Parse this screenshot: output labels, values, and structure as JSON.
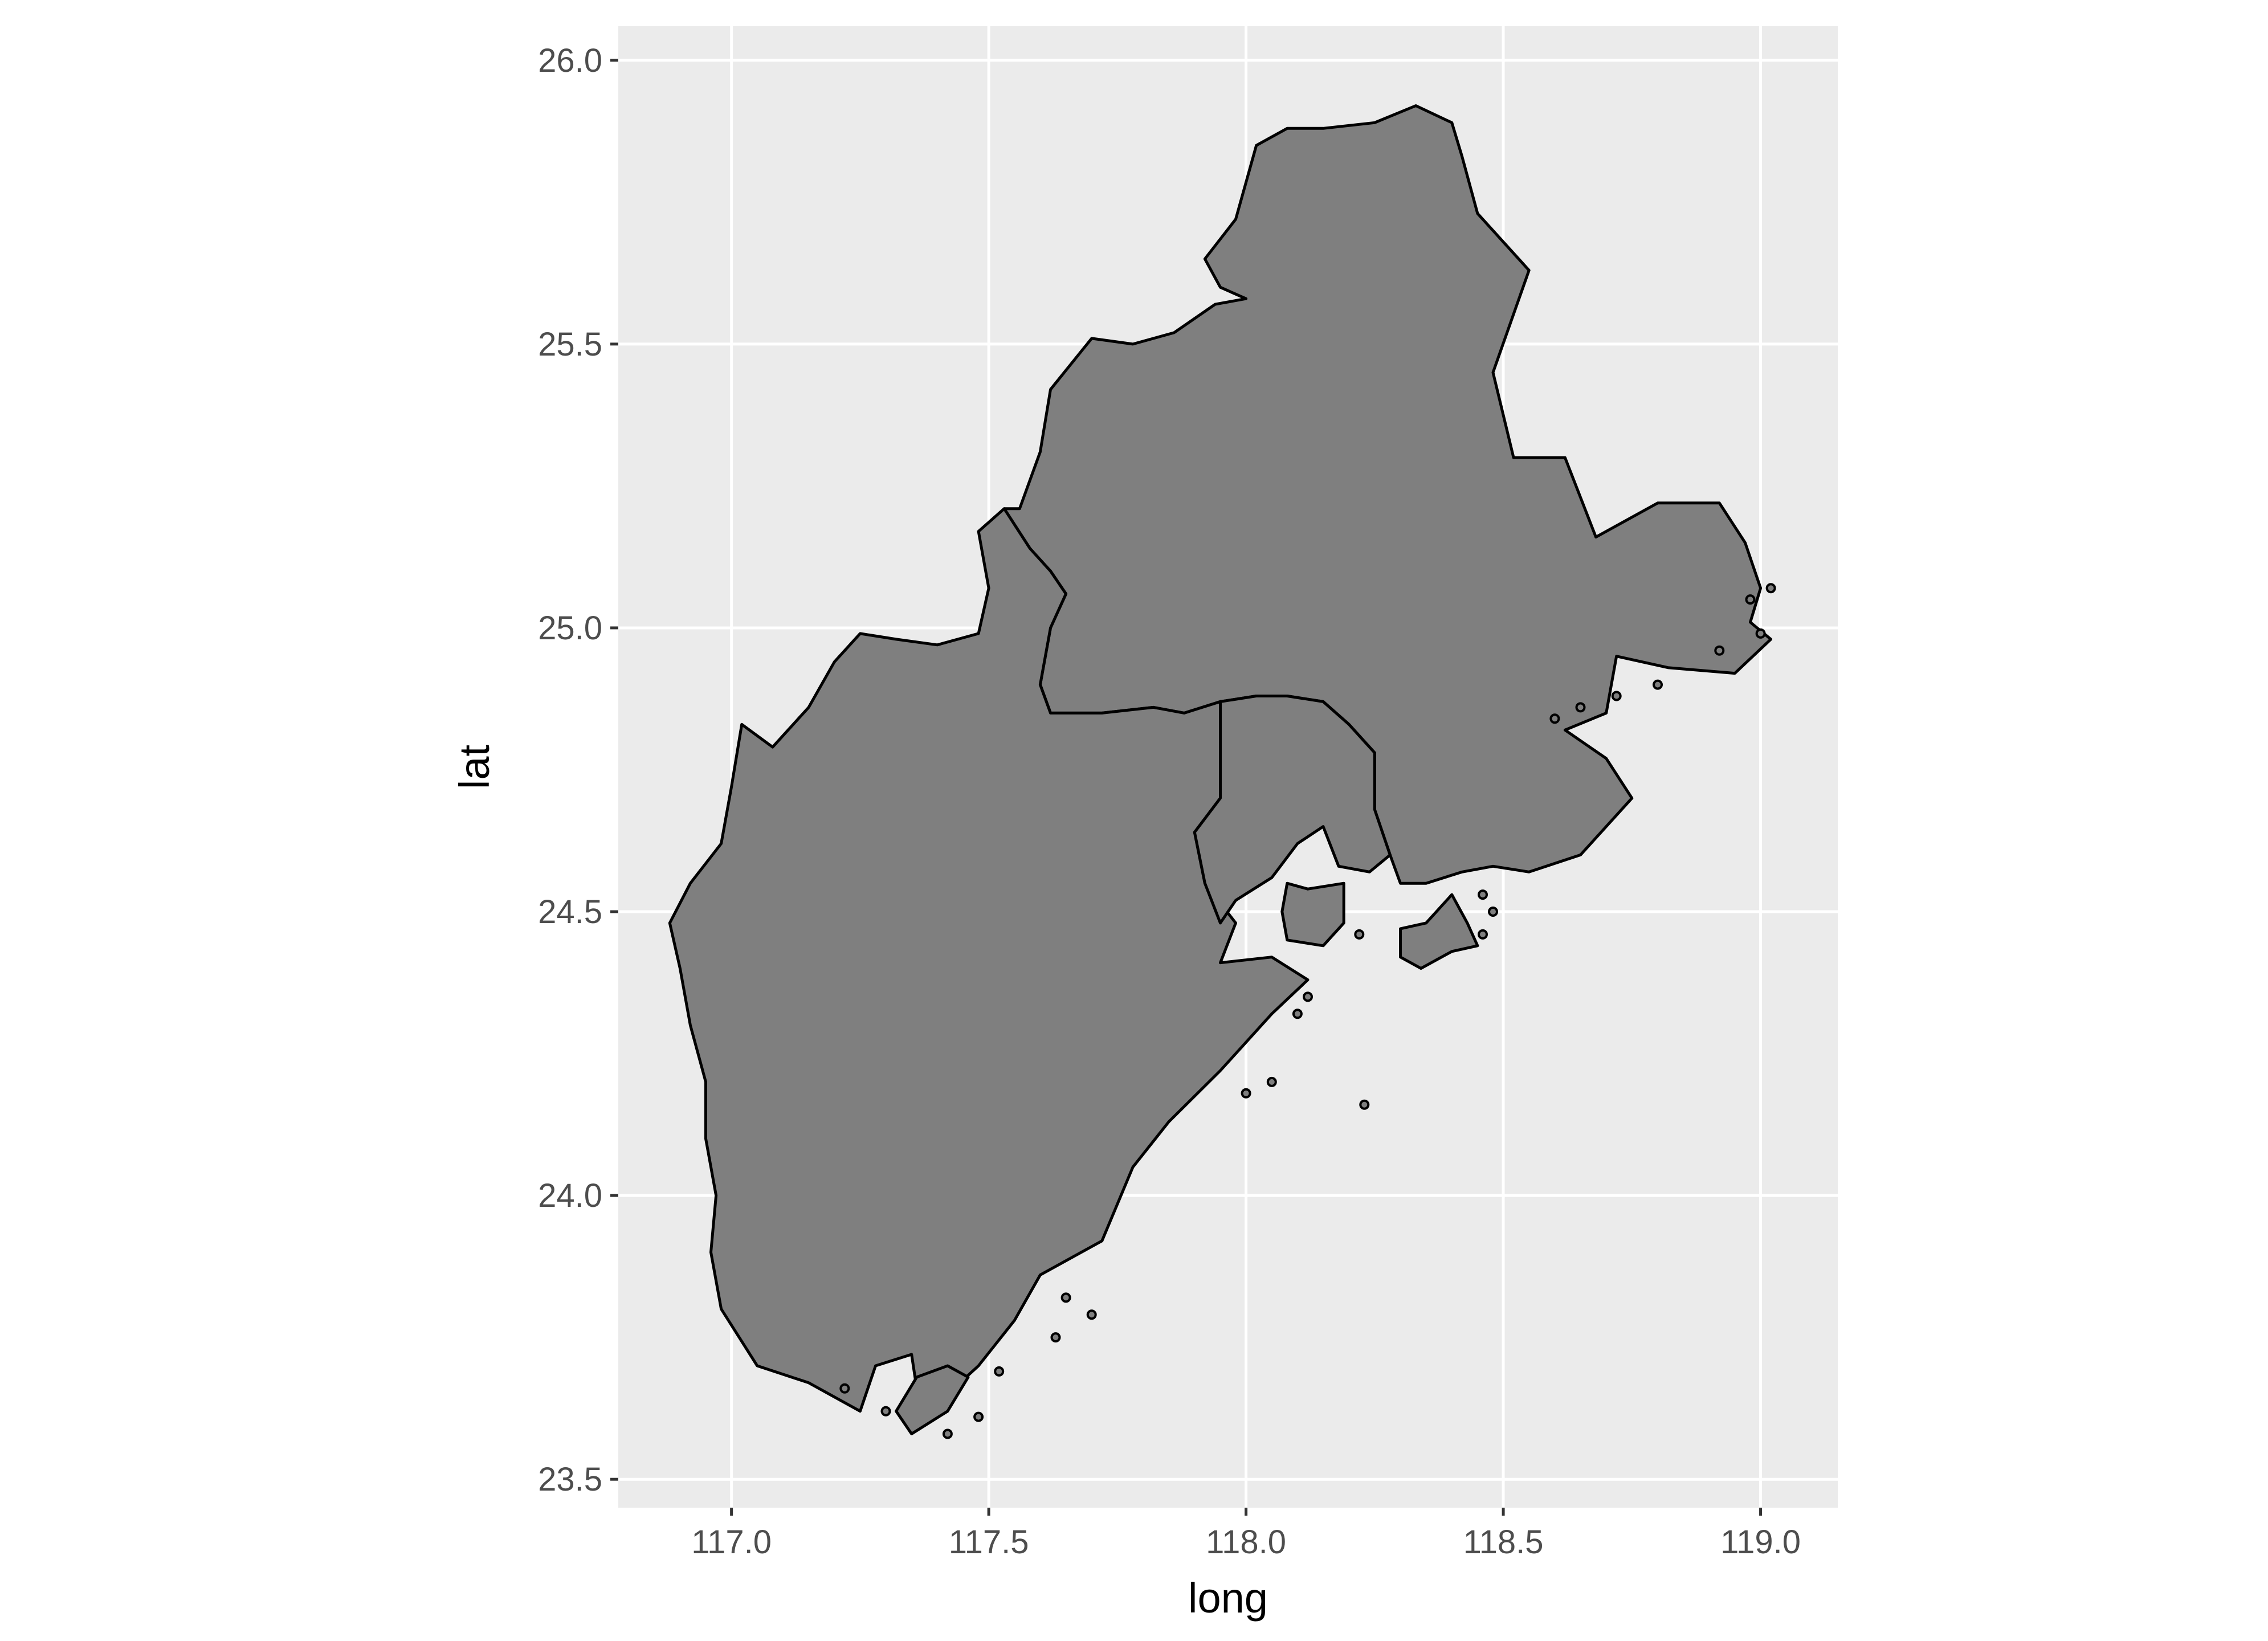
{
  "chart_data": {
    "type": "map",
    "title": "",
    "xlabel": "long",
    "ylabel": "lat",
    "xlim": [
      116.78,
      119.15
    ],
    "ylim": [
      23.45,
      26.06
    ],
    "x_ticks": [
      "117.0",
      "117.5",
      "118.0",
      "118.5",
      "119.0"
    ],
    "y_ticks": [
      "23.5",
      "24.0",
      "24.5",
      "25.0",
      "25.5",
      "26.0"
    ],
    "grid": true,
    "panel_background": "#ebebeb",
    "grid_color": "#ffffff",
    "fill_color": "#7f7f7f",
    "border_color": "#000000",
    "regions": [
      {
        "id": "region-north",
        "coords": [
          [
            117.53,
            25.21
          ],
          [
            117.56,
            25.21
          ],
          [
            117.6,
            25.31
          ],
          [
            117.62,
            25.42
          ],
          [
            117.7,
            25.51
          ],
          [
            117.78,
            25.5
          ],
          [
            117.86,
            25.52
          ],
          [
            117.94,
            25.57
          ],
          [
            118.0,
            25.58
          ],
          [
            117.95,
            25.6
          ],
          [
            117.92,
            25.65
          ],
          [
            117.98,
            25.72
          ],
          [
            118.02,
            25.85
          ],
          [
            118.08,
            25.88
          ],
          [
            118.15,
            25.88
          ],
          [
            118.25,
            25.89
          ],
          [
            118.33,
            25.92
          ],
          [
            118.4,
            25.89
          ],
          [
            118.42,
            25.83
          ],
          [
            118.45,
            25.73
          ],
          [
            118.55,
            25.63
          ],
          [
            118.48,
            25.45
          ],
          [
            118.52,
            25.3
          ],
          [
            118.62,
            25.3
          ],
          [
            118.68,
            25.16
          ],
          [
            118.8,
            25.22
          ],
          [
            118.92,
            25.22
          ],
          [
            118.97,
            25.15
          ],
          [
            119.0,
            25.07
          ],
          [
            118.98,
            25.01
          ],
          [
            119.02,
            24.98
          ],
          [
            118.95,
            24.92
          ],
          [
            118.82,
            24.93
          ],
          [
            118.72,
            24.95
          ],
          [
            118.7,
            24.85
          ],
          [
            118.62,
            24.82
          ],
          [
            118.7,
            24.77
          ],
          [
            118.75,
            24.7
          ],
          [
            118.65,
            24.6
          ],
          [
            118.55,
            24.57
          ],
          [
            118.48,
            24.58
          ],
          [
            118.42,
            24.57
          ],
          [
            118.35,
            24.55
          ],
          [
            118.3,
            24.55
          ],
          [
            118.28,
            24.6
          ],
          [
            118.25,
            24.68
          ],
          [
            118.25,
            24.78
          ],
          [
            118.2,
            24.83
          ],
          [
            118.15,
            24.87
          ],
          [
            118.08,
            24.88
          ],
          [
            118.02,
            24.88
          ],
          [
            117.95,
            24.87
          ],
          [
            117.88,
            24.85
          ],
          [
            117.82,
            24.86
          ],
          [
            117.72,
            24.85
          ],
          [
            117.62,
            24.85
          ],
          [
            117.6,
            24.9
          ],
          [
            117.62,
            25.0
          ],
          [
            117.65,
            25.06
          ],
          [
            117.62,
            25.1
          ],
          [
            117.58,
            25.14
          ],
          [
            117.53,
            25.21
          ]
        ]
      },
      {
        "id": "region-south",
        "coords": [
          [
            117.53,
            25.21
          ],
          [
            117.48,
            25.17
          ],
          [
            117.5,
            25.07
          ],
          [
            117.48,
            24.99
          ],
          [
            117.4,
            24.97
          ],
          [
            117.32,
            24.98
          ],
          [
            117.25,
            24.99
          ],
          [
            117.2,
            24.94
          ],
          [
            117.15,
            24.86
          ],
          [
            117.08,
            24.79
          ],
          [
            117.02,
            24.83
          ],
          [
            117.0,
            24.72
          ],
          [
            116.98,
            24.62
          ],
          [
            116.92,
            24.55
          ],
          [
            116.88,
            24.48
          ],
          [
            116.9,
            24.4
          ],
          [
            116.92,
            24.3
          ],
          [
            116.95,
            24.2
          ],
          [
            116.95,
            24.1
          ],
          [
            116.97,
            24.0
          ],
          [
            116.96,
            23.9
          ],
          [
            116.98,
            23.8
          ],
          [
            117.05,
            23.7
          ],
          [
            117.15,
            23.67
          ],
          [
            117.25,
            23.62
          ],
          [
            117.28,
            23.7
          ],
          [
            117.35,
            23.72
          ],
          [
            117.37,
            23.6
          ],
          [
            117.42,
            23.65
          ],
          [
            117.48,
            23.7
          ],
          [
            117.55,
            23.78
          ],
          [
            117.6,
            23.86
          ],
          [
            117.68,
            23.9
          ],
          [
            117.72,
            23.92
          ],
          [
            117.78,
            24.05
          ],
          [
            117.85,
            24.13
          ],
          [
            117.95,
            24.22
          ],
          [
            118.05,
            24.32
          ],
          [
            118.12,
            24.38
          ],
          [
            118.05,
            24.42
          ],
          [
            117.95,
            24.41
          ],
          [
            117.98,
            24.48
          ],
          [
            117.92,
            24.55
          ],
          [
            117.9,
            24.64
          ],
          [
            117.95,
            24.7
          ],
          [
            117.95,
            24.75
          ],
          [
            117.95,
            24.87
          ],
          [
            117.88,
            24.85
          ],
          [
            117.82,
            24.86
          ],
          [
            117.72,
            24.85
          ],
          [
            117.62,
            24.85
          ],
          [
            117.6,
            24.9
          ],
          [
            117.62,
            25.0
          ],
          [
            117.65,
            25.06
          ],
          [
            117.62,
            25.1
          ],
          [
            117.58,
            25.14
          ],
          [
            117.53,
            25.21
          ]
        ]
      },
      {
        "id": "region-middle",
        "coords": [
          [
            117.95,
            24.87
          ],
          [
            118.02,
            24.88
          ],
          [
            118.08,
            24.88
          ],
          [
            118.15,
            24.87
          ],
          [
            118.2,
            24.83
          ],
          [
            118.25,
            24.78
          ],
          [
            118.25,
            24.68
          ],
          [
            118.28,
            24.6
          ],
          [
            118.24,
            24.57
          ],
          [
            118.18,
            24.58
          ],
          [
            118.15,
            24.65
          ],
          [
            118.1,
            24.62
          ],
          [
            118.05,
            24.56
          ],
          [
            117.98,
            24.52
          ],
          [
            117.95,
            24.48
          ],
          [
            117.92,
            24.55
          ],
          [
            117.9,
            24.64
          ],
          [
            117.95,
            24.7
          ],
          [
            117.95,
            24.75
          ],
          [
            117.95,
            24.87
          ]
        ]
      },
      {
        "id": "region-xiamen-island",
        "coords": [
          [
            118.08,
            24.55
          ],
          [
            118.12,
            24.54
          ],
          [
            118.19,
            24.55
          ],
          [
            118.19,
            24.48
          ],
          [
            118.15,
            24.44
          ],
          [
            118.08,
            24.45
          ],
          [
            118.07,
            24.5
          ],
          [
            118.08,
            24.55
          ]
        ]
      },
      {
        "id": "region-kinmen-island",
        "coords": [
          [
            118.3,
            24.47
          ],
          [
            118.35,
            24.48
          ],
          [
            118.4,
            24.53
          ],
          [
            118.43,
            24.48
          ],
          [
            118.45,
            24.44
          ],
          [
            118.4,
            24.43
          ],
          [
            118.34,
            24.4
          ],
          [
            118.3,
            24.42
          ],
          [
            118.3,
            24.47
          ]
        ]
      },
      {
        "id": "region-dongshan-island",
        "coords": [
          [
            117.36,
            23.68
          ],
          [
            117.42,
            23.7
          ],
          [
            117.46,
            23.68
          ],
          [
            117.42,
            23.62
          ],
          [
            117.35,
            23.58
          ],
          [
            117.32,
            23.62
          ],
          [
            117.36,
            23.68
          ]
        ]
      }
    ],
    "islets": [
      [
        118.6,
        24.84
      ],
      [
        118.65,
        24.86
      ],
      [
        118.72,
        24.88
      ],
      [
        118.8,
        24.9
      ],
      [
        118.92,
        24.96
      ],
      [
        118.98,
        25.05
      ],
      [
        119.02,
        25.07
      ],
      [
        119.0,
        24.99
      ],
      [
        118.46,
        24.46
      ],
      [
        118.48,
        24.5
      ],
      [
        118.46,
        24.53
      ],
      [
        118.22,
        24.46
      ],
      [
        118.12,
        24.35
      ],
      [
        118.1,
        24.32
      ],
      [
        118.05,
        24.2
      ],
      [
        118.0,
        24.18
      ],
      [
        118.23,
        24.16
      ],
      [
        117.65,
        23.82
      ],
      [
        117.7,
        23.79
      ],
      [
        117.63,
        23.75
      ],
      [
        117.52,
        23.69
      ],
      [
        117.48,
        23.61
      ],
      [
        117.42,
        23.58
      ],
      [
        117.22,
        23.66
      ],
      [
        117.3,
        23.62
      ]
    ]
  }
}
